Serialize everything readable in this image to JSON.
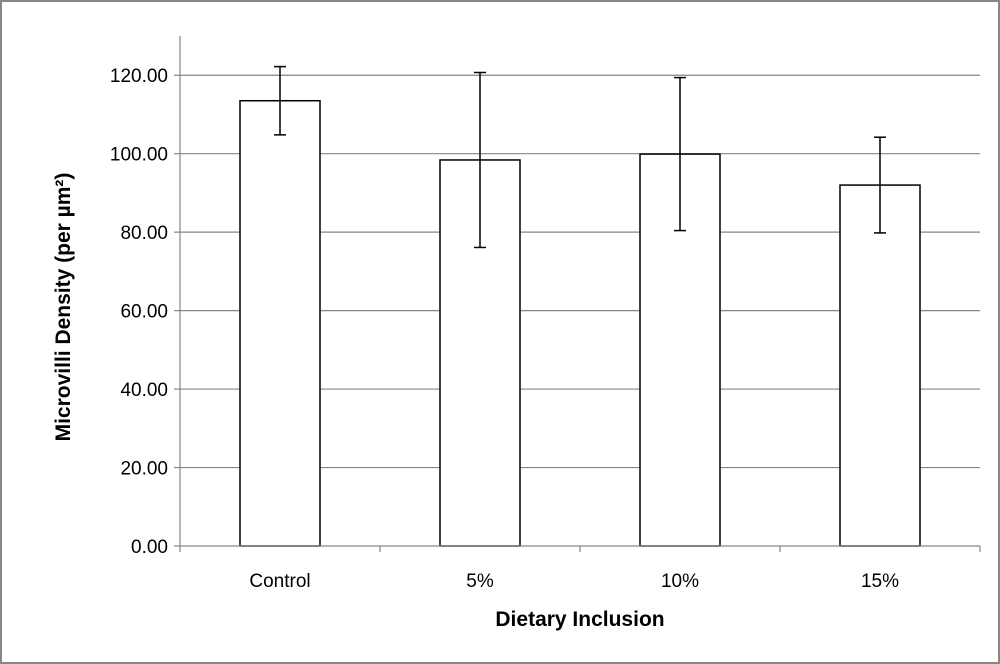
{
  "chart_data": {
    "type": "bar",
    "title": "",
    "xlabel": "Dietary Inclusion",
    "ylabel": "Microvilli Density (per µm²)",
    "categories": [
      "Control",
      "5%",
      "10%",
      "15%"
    ],
    "series": [
      {
        "values": [
          113.5,
          98.4,
          99.9,
          92.0
        ],
        "error_upper": [
          122.2,
          120.7,
          119.4,
          104.2
        ],
        "error_lower": [
          104.8,
          76.1,
          80.4,
          79.8
        ]
      }
    ],
    "ylim": [
      0,
      130
    ],
    "yticks": [
      "0.00",
      "20.00",
      "40.00",
      "60.00",
      "80.00",
      "100.00",
      "120.00"
    ],
    "ytick_values": [
      0,
      20,
      40,
      60,
      80,
      100,
      120
    ],
    "grid": true,
    "legend": "none",
    "colors": {
      "bar_fill": "#ffffff",
      "bar_stroke": "#000000",
      "grid": "#868686",
      "frame": "#868686"
    }
  }
}
